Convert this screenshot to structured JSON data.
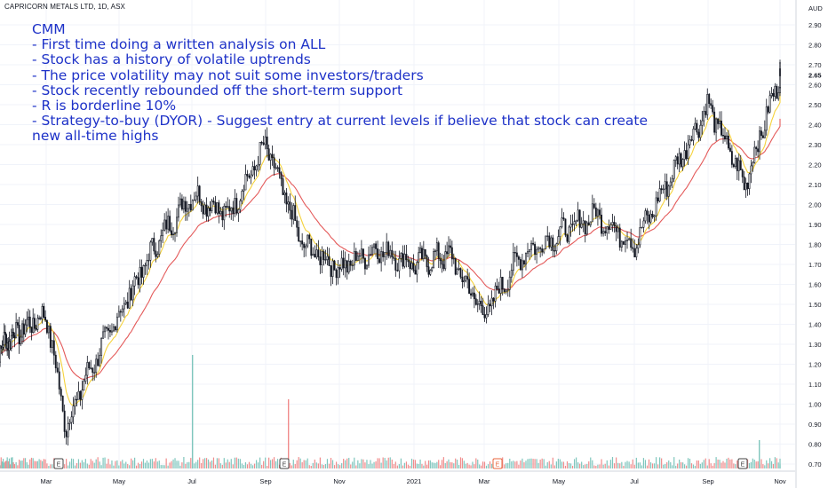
{
  "header": {
    "symbol_title": "CAPRICORN METALS LTD, 1D, ASX",
    "currency_label": "AUD"
  },
  "note": {
    "lines": [
      "CMM",
      "- First time doing a written analysis on ALL",
      "- Stock has a history of volatile uptrends",
      "- The price volatility may not suit some investors/traders",
      "- Stock recently rebounded off the short-term support",
      "- R is borderline 10%",
      "- Strategy-to-buy (DYOR) - Suggest entry at current levels if believe that stock can create",
      "new all-time highs"
    ]
  },
  "chart_data": {
    "type": "line",
    "ylim": [
      0.66,
      3.0
    ],
    "y_ticks": [
      "2.90",
      "2.80",
      "2.70",
      "2.60",
      "2.50",
      "2.40",
      "2.30",
      "2.20",
      "2.10",
      "2.00",
      "1.90",
      "1.80",
      "1.70",
      "1.60",
      "1.50",
      "1.40",
      "1.30",
      "1.20",
      "1.10",
      "1.00",
      "0.90",
      "0.80",
      "0.70"
    ],
    "current_price_labels": [
      "2.65"
    ],
    "x_ticks": [
      "Mar",
      "May",
      "Jul",
      "Sep",
      "Nov",
      "2021",
      "Mar",
      "May",
      "Jul",
      "Sep",
      "Nov"
    ],
    "earnings_markers": [
      {
        "label": "E",
        "month": "Mar 2020",
        "color": "#444444"
      },
      {
        "label": "E",
        "month": "Sep 2020",
        "color": "#444444"
      },
      {
        "label": "E",
        "month": "Mar 2021",
        "color": "#e8643c"
      },
      {
        "label": "E",
        "month": "Sep 2021",
        "color": "#444444"
      }
    ],
    "series": [],
    "price_anchors": [
      {
        "x": "Jan 2020",
        "close": 1.25
      },
      {
        "x": "Mar 2020",
        "close": 1.45
      },
      {
        "x": "Mar 2020",
        "close": 0.88
      },
      {
        "x": "Apr 2020",
        "close": 1.1
      },
      {
        "x": "May 2020",
        "close": 1.45
      },
      {
        "x": "Jun 2020",
        "close": 1.8
      },
      {
        "x": "Jul 2020",
        "close": 2.05
      },
      {
        "x": "Aug 2020",
        "close": 1.95
      },
      {
        "x": "Sep 2020",
        "close": 2.3
      },
      {
        "x": "Oct 2020",
        "close": 1.8
      },
      {
        "x": "Nov 2020",
        "close": 1.68
      },
      {
        "x": "Dec 2020",
        "close": 1.78
      },
      {
        "x": "Jan 2021",
        "close": 1.7
      },
      {
        "x": "Feb 2021",
        "close": 1.75
      },
      {
        "x": "Mar 2021",
        "close": 1.45
      },
      {
        "x": "Apr 2021",
        "close": 1.75
      },
      {
        "x": "May 2021",
        "close": 1.85
      },
      {
        "x": "Jun 2021",
        "close": 1.95
      },
      {
        "x": "Jul 2021",
        "close": 1.8
      },
      {
        "x": "Aug 2021",
        "close": 2.15
      },
      {
        "x": "Sep 2021",
        "close": 2.5
      },
      {
        "x": "Oct 2021",
        "close": 2.1
      },
      {
        "x": "Nov 2021",
        "close": 2.65
      }
    ],
    "volume_spikes": [
      {
        "x": "Jul 2020",
        "color": "#7fc6bd"
      },
      {
        "x": "Sep 2020",
        "color": "#f08c8c"
      },
      {
        "x": "Oct 2021",
        "color": "#7fc6bd"
      }
    ]
  },
  "colors": {
    "up": "#131722",
    "down": "#131722",
    "ema_short": "#f5d23c",
    "ema_long": "#e45a5a",
    "grid": "#f0f3fa",
    "vol_up": "#7fc6bd",
    "vol_down": "#f08c8c",
    "note": "#1e32c8"
  }
}
